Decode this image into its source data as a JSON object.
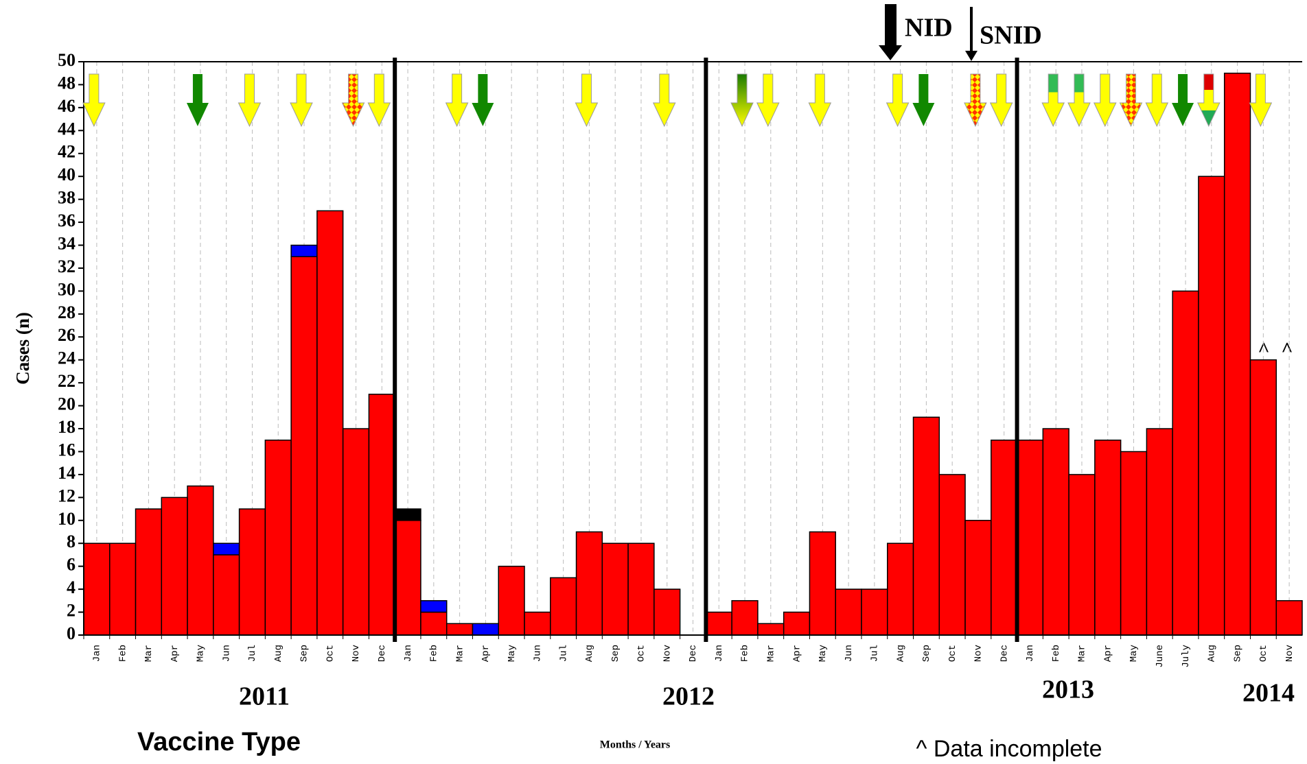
{
  "chart_data": {
    "type": "stacked_bar",
    "y_label": "Cases (n)",
    "x_label": "Months / Years",
    "categories": [
      "Jan",
      "Feb",
      "Mar",
      "Apr",
      "May",
      "Jun",
      "Jul",
      "Aug",
      "Sep",
      "Oct",
      "Nov",
      "Dec",
      "Jan",
      "Feb",
      "Mar",
      "Apr",
      "May",
      "Jun",
      "Jul",
      "Aug",
      "Sep",
      "Oct",
      "Nov",
      "Dec",
      "Jan",
      "Feb",
      "Mar",
      "Apr",
      "May",
      "Jun",
      "Jul",
      "Aug",
      "Sep",
      "Oct",
      "Nov",
      "Dec",
      "Jan",
      "Feb",
      "Mar",
      "Apr",
      "May",
      "June",
      "July",
      "Aug",
      "Sep",
      "Oct",
      "Nov"
    ],
    "series": [
      {
        "color": "#ff0000",
        "values": [
          8,
          8,
          11,
          12,
          13,
          7,
          11,
          17,
          33,
          37,
          18,
          21,
          10,
          2,
          1,
          0,
          6,
          2,
          5,
          9,
          8,
          8,
          4,
          0,
          2,
          3,
          1,
          2,
          9,
          4,
          4,
          8,
          19,
          14,
          10,
          17,
          17,
          18,
          14,
          17,
          16,
          18,
          30,
          40,
          49,
          24,
          3
        ]
      },
      {
        "color": "#0000ff",
        "values": [
          0,
          0,
          0,
          0,
          0,
          1,
          0,
          0,
          1,
          0,
          0,
          0,
          0,
          1,
          0,
          1,
          0,
          0,
          0,
          0,
          0,
          0,
          0,
          0,
          0,
          0,
          0,
          0,
          0,
          0,
          0,
          0,
          0,
          0,
          0,
          0,
          0,
          0,
          0,
          0,
          0,
          0,
          0,
          0,
          0,
          0,
          0
        ]
      },
      {
        "color": "#000000",
        "values": [
          0,
          0,
          0,
          0,
          0,
          0,
          0,
          0,
          0,
          0,
          0,
          0,
          1,
          0,
          0,
          0,
          0,
          0,
          0,
          0,
          0,
          0,
          0,
          0,
          0,
          0,
          0,
          0,
          0,
          0,
          0,
          0,
          0,
          0,
          0,
          0,
          0,
          0,
          0,
          0,
          0,
          0,
          0,
          0,
          0,
          0,
          0
        ]
      }
    ],
    "ylim": [
      0,
      50
    ],
    "yticks": [
      0,
      2,
      4,
      6,
      8,
      10,
      12,
      14,
      16,
      18,
      20,
      22,
      24,
      26,
      28,
      30,
      32,
      34,
      36,
      38,
      40,
      42,
      44,
      46,
      48,
      50
    ],
    "year_labels": [
      "2011",
      "2012",
      "2013",
      "2014"
    ],
    "annotations": {
      "nid": "NID",
      "snid": "SNID",
      "incomplete_mark": "^",
      "incomplete_note": "^ Data incomplete",
      "vaccine_type": "Vaccine Type"
    }
  }
}
